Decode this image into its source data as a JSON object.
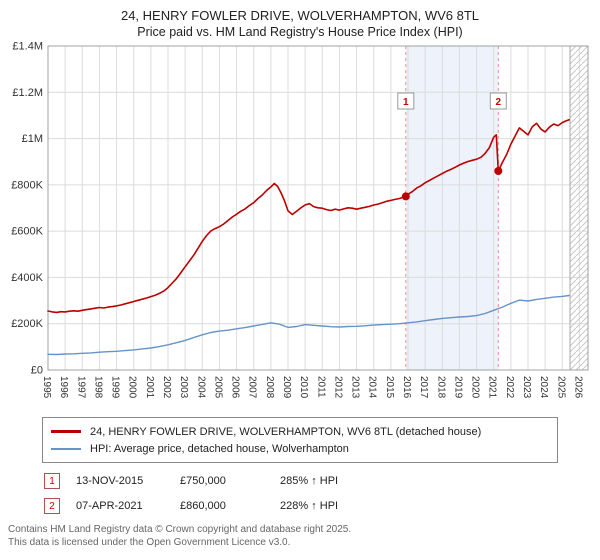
{
  "title": {
    "line1": "24, HENRY FOWLER DRIVE, WOLVERHAMPTON, WV6 8TL",
    "line2": "Price paid vs. HM Land Registry's House Price Index (HPI)"
  },
  "chart_data": {
    "type": "line",
    "title": "24, HENRY FOWLER DRIVE, WOLVERHAMPTON, WV6 8TL — Price paid vs. HM Land Registry's House Price Index (HPI)",
    "xlabel": "",
    "ylabel": "",
    "x_range": [
      1995,
      2026.5
    ],
    "y_range": [
      0,
      1400000
    ],
    "grid": true,
    "legend_position": "bottom",
    "x_ticks": [
      1995,
      1996,
      1997,
      1998,
      1999,
      2000,
      2001,
      2002,
      2003,
      2004,
      2005,
      2006,
      2007,
      2008,
      2009,
      2010,
      2011,
      2012,
      2013,
      2014,
      2015,
      2016,
      2017,
      2018,
      2019,
      2020,
      2021,
      2022,
      2023,
      2024,
      2025,
      2026
    ],
    "y_ticks": [
      {
        "value": 0,
        "label": "£0"
      },
      {
        "value": 200000,
        "label": "£200K"
      },
      {
        "value": 400000,
        "label": "£400K"
      },
      {
        "value": 600000,
        "label": "£600K"
      },
      {
        "value": 800000,
        "label": "£800K"
      },
      {
        "value": 1000000,
        "label": "£1M"
      },
      {
        "value": 1200000,
        "label": "£1.2M"
      },
      {
        "value": 1400000,
        "label": "£1.4M"
      }
    ],
    "shaded_region": [
      2015.87,
      2021.27
    ],
    "hatched_region": [
      2025.45,
      2026.5
    ],
    "series": [
      {
        "id": "property-price-line",
        "name": "24, HENRY FOWLER DRIVE, WOLVERHAMPTON, WV6 8TL (detached house)",
        "color": "#bb0000",
        "stroke_width": 1.6,
        "points": [
          [
            1995,
            255000
          ],
          [
            1995.25,
            251000
          ],
          [
            1995.5,
            249000
          ],
          [
            1995.75,
            252000
          ],
          [
            1996,
            251000
          ],
          [
            1996.25,
            254000
          ],
          [
            1996.5,
            256000
          ],
          [
            1996.75,
            254000
          ],
          [
            1997,
            258000
          ],
          [
            1997.25,
            261000
          ],
          [
            1997.5,
            264000
          ],
          [
            1997.75,
            267000
          ],
          [
            1998,
            270000
          ],
          [
            1998.25,
            268000
          ],
          [
            1998.5,
            272000
          ],
          [
            1998.75,
            274000
          ],
          [
            1999,
            277000
          ],
          [
            1999.25,
            281000
          ],
          [
            1999.5,
            286000
          ],
          [
            1999.75,
            291000
          ],
          [
            2000,
            296000
          ],
          [
            2000.25,
            301000
          ],
          [
            2000.5,
            306000
          ],
          [
            2000.75,
            311000
          ],
          [
            2001,
            317000
          ],
          [
            2001.25,
            323000
          ],
          [
            2001.5,
            331000
          ],
          [
            2001.75,
            341000
          ],
          [
            2002,
            356000
          ],
          [
            2002.25,
            376000
          ],
          [
            2002.5,
            396000
          ],
          [
            2002.75,
            421000
          ],
          [
            2003,
            446000
          ],
          [
            2003.25,
            471000
          ],
          [
            2003.5,
            496000
          ],
          [
            2003.75,
            526000
          ],
          [
            2004,
            556000
          ],
          [
            2004.25,
            581000
          ],
          [
            2004.5,
            601000
          ],
          [
            2004.75,
            611000
          ],
          [
            2005,
            619000
          ],
          [
            2005.25,
            631000
          ],
          [
            2005.5,
            646000
          ],
          [
            2005.75,
            661000
          ],
          [
            2006,
            673000
          ],
          [
            2006.25,
            686000
          ],
          [
            2006.5,
            696000
          ],
          [
            2006.75,
            711000
          ],
          [
            2007,
            723000
          ],
          [
            2007.25,
            741000
          ],
          [
            2007.5,
            756000
          ],
          [
            2007.75,
            776000
          ],
          [
            2008,
            791000
          ],
          [
            2008.2,
            806000
          ],
          [
            2008.4,
            793000
          ],
          [
            2008.6,
            765000
          ],
          [
            2008.8,
            730000
          ],
          [
            2009,
            688000
          ],
          [
            2009.25,
            672000
          ],
          [
            2009.5,
            686000
          ],
          [
            2009.75,
            701000
          ],
          [
            2010,
            713000
          ],
          [
            2010.25,
            719000
          ],
          [
            2010.5,
            706000
          ],
          [
            2010.75,
            701000
          ],
          [
            2011,
            699000
          ],
          [
            2011.25,
            693000
          ],
          [
            2011.5,
            689000
          ],
          [
            2011.75,
            695000
          ],
          [
            2012,
            691000
          ],
          [
            2012.25,
            696000
          ],
          [
            2012.5,
            701000
          ],
          [
            2012.75,
            699000
          ],
          [
            2013,
            695000
          ],
          [
            2013.25,
            699000
          ],
          [
            2013.5,
            703000
          ],
          [
            2013.75,
            707000
          ],
          [
            2014,
            713000
          ],
          [
            2014.25,
            717000
          ],
          [
            2014.5,
            723000
          ],
          [
            2014.75,
            729000
          ],
          [
            2015,
            733000
          ],
          [
            2015.25,
            737000
          ],
          [
            2015.5,
            741000
          ],
          [
            2015.87,
            750000
          ],
          [
            2016,
            759000
          ],
          [
            2016.25,
            771000
          ],
          [
            2016.5,
            786000
          ],
          [
            2016.75,
            796000
          ],
          [
            2017,
            809000
          ],
          [
            2017.25,
            819000
          ],
          [
            2017.5,
            829000
          ],
          [
            2017.75,
            839000
          ],
          [
            2018,
            849000
          ],
          [
            2018.25,
            859000
          ],
          [
            2018.5,
            867000
          ],
          [
            2018.75,
            876000
          ],
          [
            2019,
            886000
          ],
          [
            2019.25,
            894000
          ],
          [
            2019.5,
            901000
          ],
          [
            2019.75,
            906000
          ],
          [
            2020,
            911000
          ],
          [
            2020.25,
            919000
          ],
          [
            2020.5,
            936000
          ],
          [
            2020.75,
            961000
          ],
          [
            2021,
            1006000
          ],
          [
            2021.15,
            1016000
          ],
          [
            2021.27,
            860000
          ],
          [
            2021.5,
            896000
          ],
          [
            2021.75,
            931000
          ],
          [
            2022,
            976000
          ],
          [
            2022.25,
            1011000
          ],
          [
            2022.5,
            1046000
          ],
          [
            2022.75,
            1031000
          ],
          [
            2023,
            1016000
          ],
          [
            2023.25,
            1051000
          ],
          [
            2023.5,
            1066000
          ],
          [
            2023.75,
            1041000
          ],
          [
            2024,
            1029000
          ],
          [
            2024.25,
            1049000
          ],
          [
            2024.5,
            1063000
          ],
          [
            2024.75,
            1056000
          ],
          [
            2025,
            1069000
          ],
          [
            2025.2,
            1076000
          ],
          [
            2025.4,
            1081000
          ]
        ]
      },
      {
        "id": "hpi-line",
        "name": "HPI: Average price, detached house, Wolverhampton",
        "color": "#6694c8",
        "stroke_width": 1.4,
        "points": [
          [
            1995,
            68000
          ],
          [
            1995.5,
            67000
          ],
          [
            1996,
            69000
          ],
          [
            1996.5,
            70000
          ],
          [
            1997,
            72000
          ],
          [
            1997.5,
            74000
          ],
          [
            1998,
            77000
          ],
          [
            1998.5,
            79000
          ],
          [
            1999,
            81000
          ],
          [
            1999.5,
            84000
          ],
          [
            2000,
            87000
          ],
          [
            2000.5,
            91000
          ],
          [
            2001,
            95000
          ],
          [
            2001.5,
            101000
          ],
          [
            2002,
            109000
          ],
          [
            2002.5,
            118000
          ],
          [
            2003,
            128000
          ],
          [
            2003.5,
            140000
          ],
          [
            2004,
            152000
          ],
          [
            2004.5,
            162000
          ],
          [
            2005,
            168000
          ],
          [
            2005.5,
            172000
          ],
          [
            2006,
            178000
          ],
          [
            2006.5,
            183000
          ],
          [
            2007,
            190000
          ],
          [
            2007.5,
            197000
          ],
          [
            2008,
            204000
          ],
          [
            2008.5,
            198000
          ],
          [
            2009,
            184000
          ],
          [
            2009.5,
            188000
          ],
          [
            2010,
            196000
          ],
          [
            2010.5,
            193000
          ],
          [
            2011,
            190000
          ],
          [
            2011.5,
            187000
          ],
          [
            2012,
            186000
          ],
          [
            2012.5,
            188000
          ],
          [
            2013,
            189000
          ],
          [
            2013.5,
            191000
          ],
          [
            2014,
            194000
          ],
          [
            2014.5,
            196000
          ],
          [
            2015,
            198000
          ],
          [
            2015.5,
            200000
          ],
          [
            2016,
            204000
          ],
          [
            2016.5,
            208000
          ],
          [
            2017,
            213000
          ],
          [
            2017.5,
            218000
          ],
          [
            2018,
            223000
          ],
          [
            2018.5,
            226000
          ],
          [
            2019,
            229000
          ],
          [
            2019.5,
            231000
          ],
          [
            2020,
            235000
          ],
          [
            2020.5,
            244000
          ],
          [
            2021,
            258000
          ],
          [
            2021.5,
            272000
          ],
          [
            2022,
            288000
          ],
          [
            2022.5,
            302000
          ],
          [
            2023,
            298000
          ],
          [
            2023.5,
            305000
          ],
          [
            2024,
            310000
          ],
          [
            2024.5,
            315000
          ],
          [
            2025,
            318000
          ],
          [
            2025.4,
            322000
          ]
        ]
      }
    ],
    "sales": [
      {
        "label": "1",
        "year": 2015.87,
        "price": 750000
      },
      {
        "label": "2",
        "year": 2021.27,
        "price": 860000
      }
    ]
  },
  "legend": {
    "items": [
      {
        "label": "24, HENRY FOWLER DRIVE, WOLVERHAMPTON, WV6 8TL (detached house)",
        "color": "#bb0000"
      },
      {
        "label": "HPI: Average price, detached house, Wolverhampton",
        "color": "#6694c8"
      }
    ]
  },
  "transactions": [
    {
      "num": "1",
      "date": "13-NOV-2015",
      "price": "£750,000",
      "hpi": "285% ↑ HPI"
    },
    {
      "num": "2",
      "date": "07-APR-2021",
      "price": "£860,000",
      "hpi": "228% ↑ HPI"
    }
  ],
  "footer": {
    "line1": "Contains HM Land Registry data © Crown copyright and database right 2025.",
    "line2": "This data is licensed under the Open Government Licence v3.0."
  }
}
